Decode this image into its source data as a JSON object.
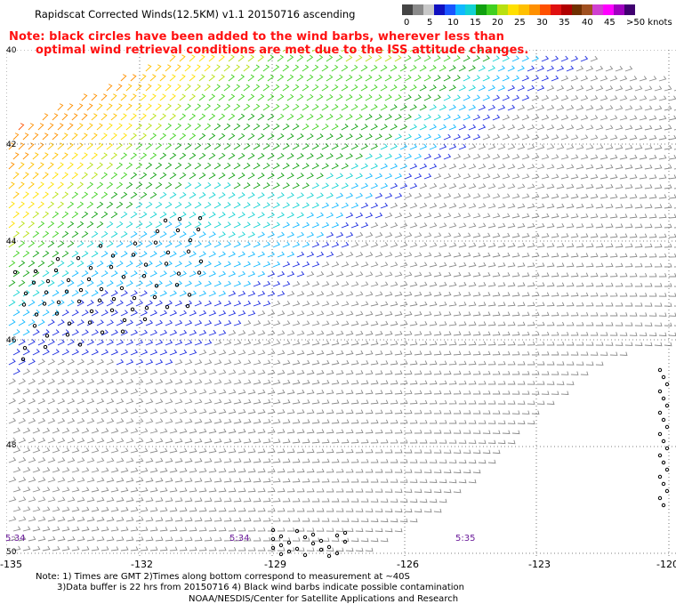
{
  "header": {
    "title": "Rapidscat Corrected Winds(12.5KM) v1.1 20150716 ascending",
    "note_line1": "Note: black circles have been added to the wind barbs, wherever less than",
    "note_line2": "optimal wind retrieval conditions are met due to the ISS attitude changes."
  },
  "colorbar": {
    "colors": [
      "#444444",
      "#8a8a8a",
      "#c8c8c8",
      "#1010c0",
      "#1a55ff",
      "#10b8ff",
      "#12d2d2",
      "#10a010",
      "#40d020",
      "#b8e010",
      "#ffe000",
      "#ffc000",
      "#ff9000",
      "#ff5000",
      "#e01010",
      "#b00000",
      "#703000",
      "#a05020",
      "#d040d0",
      "#ff00ff",
      "#a000c0",
      "#400070"
    ],
    "labels": [
      "0",
      "5",
      "10",
      "15",
      "20",
      "25",
      "30",
      "35",
      "40",
      "45",
      ">50 knots"
    ]
  },
  "axes": {
    "lat_labels": [
      "40",
      "42",
      "44",
      "46",
      "48",
      "50"
    ],
    "lon_labels": [
      "-135",
      "-132",
      "-129",
      "-126",
      "-123",
      "-120"
    ]
  },
  "times": [
    "5:34",
    "5:34",
    "5:35"
  ],
  "footer": {
    "line1": "Note: 1) Times are GMT 2)Times along bottom correspond to measurement at ~40S",
    "line2": "3)Data buffer is 22 hrs from 20150716 4) Black wind barbs indicate possible contamination",
    "line3": "NOAA/NESDIS/Center for Satellite Applications and Research"
  }
}
